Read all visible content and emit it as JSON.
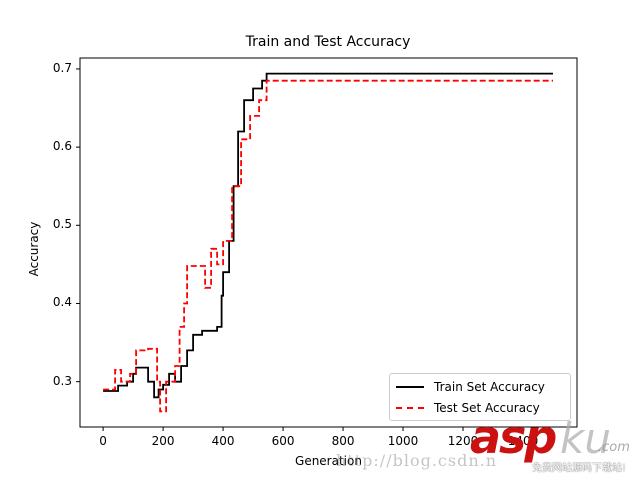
{
  "chart_data": {
    "type": "line",
    "title": "Train and Test Accuracy",
    "xlabel": "Generation",
    "ylabel": "Accuracy",
    "xlim": [
      -77,
      1580
    ],
    "ylim": [
      0.242,
      0.714
    ],
    "xticks": [
      0,
      200,
      400,
      600,
      800,
      1000,
      1200,
      1400
    ],
    "yticks": [
      0.3,
      0.4,
      0.5,
      0.6,
      0.7
    ],
    "grid": false,
    "legend_position": "lower right",
    "series": [
      {
        "name": "Train Set Accuracy",
        "color": "#000000",
        "style": "solid",
        "x": [
          0,
          30,
          50,
          80,
          100,
          110,
          140,
          150,
          170,
          185,
          200,
          220,
          240,
          260,
          280,
          300,
          330,
          360,
          380,
          395,
          400,
          420,
          435,
          450,
          470,
          500,
          530,
          545,
          1500
        ],
        "y": [
          0.288,
          0.288,
          0.295,
          0.3,
          0.31,
          0.318,
          0.318,
          0.3,
          0.28,
          0.29,
          0.296,
          0.31,
          0.3,
          0.32,
          0.34,
          0.36,
          0.365,
          0.365,
          0.37,
          0.41,
          0.44,
          0.48,
          0.55,
          0.62,
          0.66,
          0.675,
          0.685,
          0.694,
          0.694
        ]
      },
      {
        "name": "Test Set Accuracy",
        "color": "#ff0000",
        "style": "dashed",
        "x": [
          0,
          30,
          40,
          60,
          90,
          110,
          150,
          180,
          190,
          210,
          240,
          255,
          270,
          280,
          330,
          340,
          360,
          380,
          400,
          430,
          460,
          490,
          520,
          545,
          1500
        ],
        "y": [
          0.29,
          0.29,
          0.315,
          0.3,
          0.31,
          0.34,
          0.342,
          0.3,
          0.262,
          0.3,
          0.32,
          0.37,
          0.4,
          0.448,
          0.448,
          0.42,
          0.47,
          0.45,
          0.48,
          0.55,
          0.61,
          0.64,
          0.66,
          0.685,
          0.685
        ]
      }
    ]
  },
  "watermark": {
    "url_text": "http://blog.csdn.n",
    "brand_red": "asp",
    "brand_gray": "ku",
    "brand_suffix": ".com",
    "tagline": "免费网站源码下载站!"
  }
}
